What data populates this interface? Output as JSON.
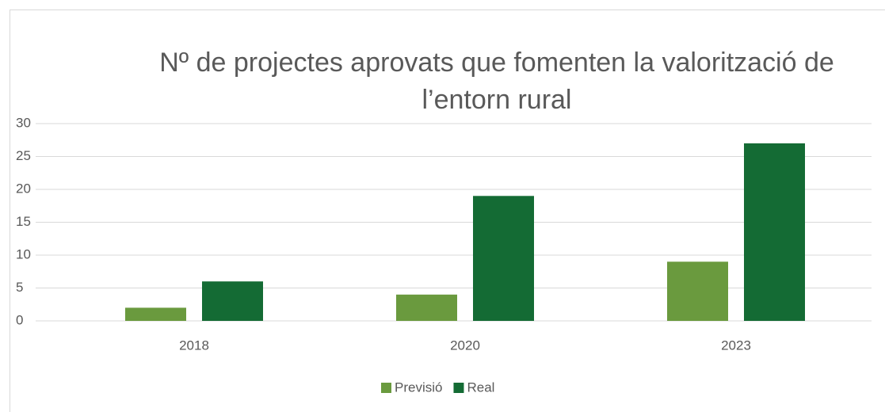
{
  "chart_data": {
    "type": "bar",
    "title": "Nº de projectes aprovats que fomenten la valorització de l’entorn rural",
    "categories": [
      "2018",
      "2020",
      "2023"
    ],
    "series": [
      {
        "name": "Previsió",
        "color": "#6a9a3e",
        "values": [
          2,
          4,
          9
        ]
      },
      {
        "name": "Real",
        "color": "#146b34",
        "values": [
          6,
          19,
          27
        ]
      }
    ],
    "ylim": [
      0,
      30
    ],
    "yticks": [
      0,
      5,
      10,
      15,
      20,
      25,
      30
    ],
    "grid": true,
    "legend": "bottom"
  }
}
